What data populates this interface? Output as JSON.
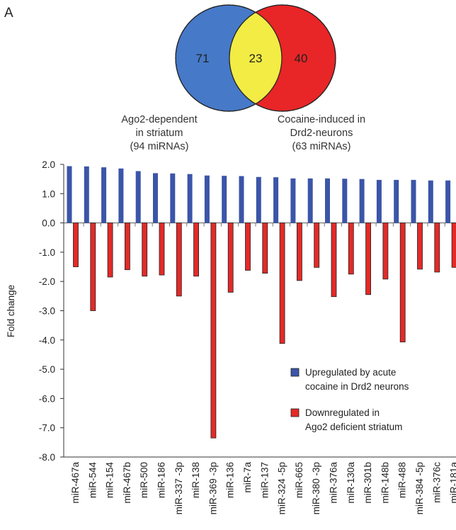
{
  "panel_label": "A",
  "venn": {
    "left": {
      "count": "71",
      "color": "#4679c8",
      "caption_line1": "Ago2-dependent",
      "caption_line2": "in striatum",
      "caption_line3": "(94 miRNAs)"
    },
    "overlap": {
      "count": "23",
      "color": "#f2ec44"
    },
    "right": {
      "count": "40",
      "color": "#e82527",
      "caption_line1": "Cocaine-induced in",
      "caption_line2": "Drd2-neurons",
      "caption_line3": "(63 miRNAs)"
    }
  },
  "chart_data": {
    "type": "bar",
    "ylabel": "Fold change",
    "ylim": [
      -8.0,
      2.0
    ],
    "yticks": [
      "2.0",
      "1.0",
      "0.0",
      "-1.0",
      "-2.0",
      "-3.0",
      "-4.0",
      "-5.0",
      "-6.0",
      "-7.0",
      "-8.0"
    ],
    "categories": [
      "miR-467a",
      "miR-544",
      "miR-154",
      "miR-467b",
      "miR-500",
      "miR-186",
      "miR-337 -3p",
      "miR-138",
      "miR-369 -3p",
      "miR-136",
      "miR-7a",
      "miR-137",
      "miR-324 -5p",
      "miR-665",
      "miR-380 -3p",
      "miR-376a",
      "miR-130a",
      "miR-301b",
      "miR-148b",
      "miR-488",
      "miR-384 -5p",
      "miR-376c",
      "miR-181a"
    ],
    "series": [
      {
        "name": "Upregulated by acute cocaine in Drd2 neurons",
        "color": "#3b55a8",
        "values": [
          1.94,
          1.93,
          1.9,
          1.86,
          1.77,
          1.7,
          1.69,
          1.67,
          1.62,
          1.61,
          1.6,
          1.57,
          1.56,
          1.52,
          1.52,
          1.52,
          1.51,
          1.5,
          1.47,
          1.47,
          1.47,
          1.45,
          1.45
        ]
      },
      {
        "name": "Downregulated in Ago2 deficient striatum",
        "color": "#e32a27",
        "values": [
          -1.5,
          -3.0,
          -1.85,
          -1.6,
          -1.82,
          -1.78,
          -2.5,
          -1.82,
          -7.35,
          -2.37,
          -1.62,
          -1.72,
          -4.12,
          -1.97,
          -1.52,
          -2.52,
          -1.75,
          -2.45,
          -1.92,
          -4.07,
          -1.58,
          -1.68,
          -1.52
        ]
      }
    ],
    "legend": [
      {
        "line1": "Upregulated by acute",
        "line2": "cocaine in Drd2 neurons"
      },
      {
        "line1": "Downregulated in",
        "line2": "Ago2 deficient striatum"
      }
    ],
    "legend_position": "lower-right",
    "grid": false
  }
}
